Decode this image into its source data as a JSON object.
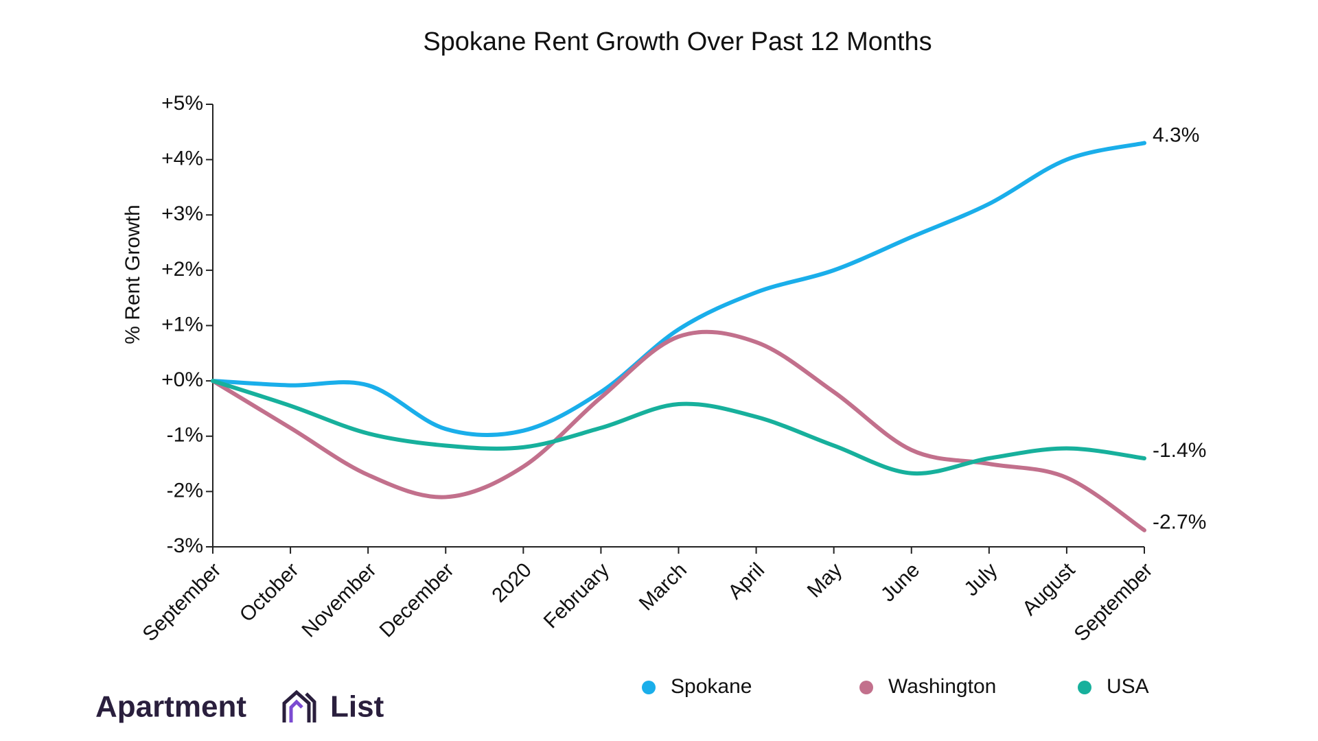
{
  "chart_data": {
    "type": "line",
    "title": "Spokane Rent Growth Over Past 12 Months",
    "y_label": "% Rent Growth",
    "categories": [
      "September",
      "October",
      "November",
      "December",
      "2020",
      "February",
      "March",
      "April",
      "May",
      "June",
      "July",
      "August",
      "September"
    ],
    "series": [
      {
        "name": "Spokane",
        "color": "#1aaeea",
        "values": [
          0,
          -0.08,
          -0.08,
          -0.87,
          -0.9,
          -0.2,
          0.93,
          1.6,
          2.0,
          2.6,
          3.2,
          4.0,
          4.3
        ],
        "value_labels": [
          null,
          null,
          null,
          null,
          null,
          null,
          null,
          null,
          null,
          null,
          null,
          null,
          "4.3%"
        ]
      },
      {
        "name": "Washington",
        "color": "#c2708c",
        "values": [
          0,
          -0.85,
          -1.7,
          -2.1,
          -1.55,
          -0.3,
          0.8,
          0.7,
          -0.2,
          -1.25,
          -1.5,
          -1.75,
          -2.7
        ],
        "value_labels": [
          null,
          null,
          null,
          null,
          null,
          null,
          null,
          null,
          null,
          null,
          null,
          null,
          "-2.7%"
        ]
      },
      {
        "name": "USA",
        "color": "#17b09c",
        "values": [
          0,
          -0.45,
          -0.95,
          -1.17,
          -1.2,
          -0.85,
          -0.42,
          -0.65,
          -1.17,
          -1.67,
          -1.4,
          -1.22,
          -1.4
        ],
        "value_labels": [
          null,
          null,
          null,
          null,
          null,
          null,
          null,
          null,
          null,
          null,
          null,
          null,
          "-1.4%"
        ]
      }
    ],
    "ylim": [
      -3,
      5
    ],
    "yticks": [
      {
        "value": -3,
        "label": "-3%"
      },
      {
        "value": -2,
        "label": "-2%"
      },
      {
        "value": -1,
        "label": "-1%"
      },
      {
        "value": 0,
        "label": "+0%"
      },
      {
        "value": 1,
        "label": "+1%"
      },
      {
        "value": 2,
        "label": "+2%"
      },
      {
        "value": 3,
        "label": "+3%"
      },
      {
        "value": 4,
        "label": "+4%"
      },
      {
        "value": 5,
        "label": "+5%"
      }
    ],
    "grid": false,
    "legend": "bottom"
  },
  "brand": {
    "left": "Apartment",
    "right": "List"
  }
}
